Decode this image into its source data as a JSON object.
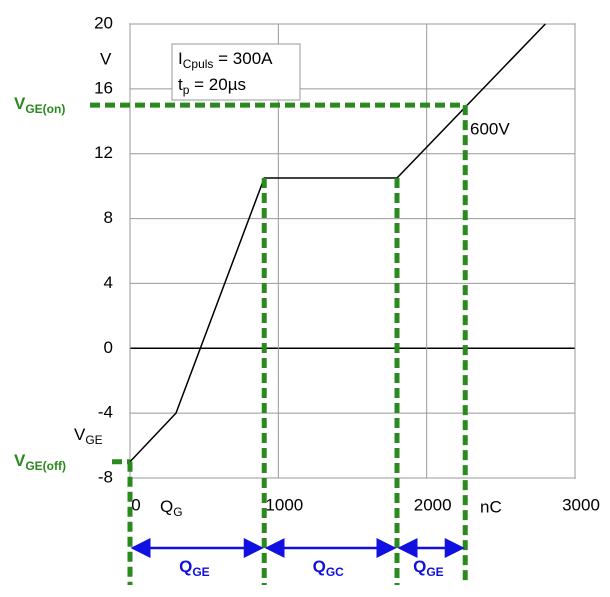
{
  "chart_data": {
    "type": "line",
    "x": [
      0,
      310,
      905,
      1800,
      2800
    ],
    "values": [
      -7,
      -4,
      10.5,
      10.5,
      20
    ],
    "color": "#000000",
    "xlim": [
      0,
      3000
    ],
    "xticks": [
      0,
      1000,
      2000,
      3000
    ],
    "ylim": [
      -8,
      20
    ],
    "yticks": [
      -8,
      -4,
      0,
      4,
      8,
      12,
      16,
      20
    ],
    "grid": true,
    "y_unit": "V",
    "x_unit": "nC",
    "y_label": {
      "main": "V",
      "sub": "GE"
    },
    "x_label": {
      "main": "Q",
      "sub": "G"
    },
    "conditions": [
      {
        "main": "I",
        "sub": "Cpuls",
        "rest": " = 300A"
      },
      {
        "main": "t",
        "sub": "p",
        "rest": " = 20µs"
      }
    ],
    "curve_label": "600V",
    "levels": [
      {
        "value": 15,
        "main": "V",
        "sub": "GE(on)"
      },
      {
        "value": -7,
        "main": "V",
        "sub": "GE(off)"
      }
    ],
    "charge_marks": [
      0,
      905,
      1800,
      2260
    ],
    "spans": [
      {
        "main": "Q",
        "sub": "GE"
      },
      {
        "main": "Q",
        "sub": "GC"
      },
      {
        "main": "Q",
        "sub": "GE"
      }
    ],
    "marker_color": "#2a8a1e",
    "span_color": "#1010e0"
  }
}
